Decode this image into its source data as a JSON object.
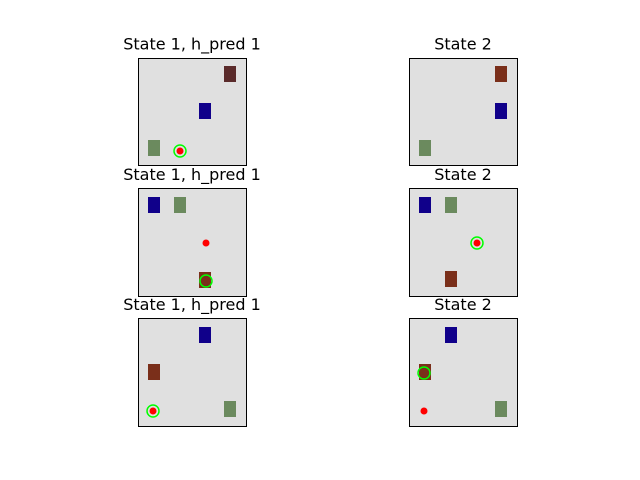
{
  "figure": {
    "panels": [
      {
        "title": "State 1, h_pred 1",
        "blocks": [
          {
            "color": "#5a2a2a",
            "name": "maroon"
          },
          {
            "color": "#10008a",
            "name": "blue"
          },
          {
            "color": "#6b8a5e",
            "name": "green"
          }
        ],
        "markers": [
          {
            "kind": "red-dot",
            "color": "#ff0000"
          },
          {
            "kind": "green-ring",
            "color": "#00ff00"
          }
        ]
      },
      {
        "title": "State 2",
        "blocks": [
          {
            "color": "#7a2f1a",
            "name": "brown"
          },
          {
            "color": "#10008a",
            "name": "blue"
          },
          {
            "color": "#6b8a5e",
            "name": "green"
          }
        ],
        "markers": []
      },
      {
        "title": "State 1, h_pred 1",
        "blocks": [
          {
            "color": "#10008a",
            "name": "blue"
          },
          {
            "color": "#6b8a5e",
            "name": "green"
          },
          {
            "color": "#7a2f1a",
            "name": "brown"
          }
        ],
        "markers": [
          {
            "kind": "red-dot",
            "color": "#ff0000"
          },
          {
            "kind": "green-ring",
            "color": "#00ff00"
          }
        ]
      },
      {
        "title": "State 2",
        "blocks": [
          {
            "color": "#10008a",
            "name": "blue"
          },
          {
            "color": "#6b8a5e",
            "name": "green"
          },
          {
            "color": "#7a2f1a",
            "name": "brown"
          }
        ],
        "markers": [
          {
            "kind": "red-dot",
            "color": "#ff0000"
          },
          {
            "kind": "green-ring",
            "color": "#00ff00"
          }
        ]
      },
      {
        "title": "State 1, h_pred 1",
        "blocks": [
          {
            "color": "#10008a",
            "name": "blue"
          },
          {
            "color": "#7a2f1a",
            "name": "brown"
          },
          {
            "color": "#6b8a5e",
            "name": "green"
          }
        ],
        "markers": [
          {
            "kind": "red-dot",
            "color": "#ff0000"
          },
          {
            "kind": "green-ring",
            "color": "#00ff00"
          }
        ]
      },
      {
        "title": "State 2",
        "blocks": [
          {
            "color": "#10008a",
            "name": "blue"
          },
          {
            "color": "#7a2f1a",
            "name": "brown"
          },
          {
            "color": "#6b8a5e",
            "name": "green"
          }
        ],
        "markers": [
          {
            "kind": "green-ring",
            "color": "#00ff00"
          },
          {
            "kind": "red-dot",
            "color": "#ff0000"
          }
        ]
      }
    ],
    "colors": {
      "background": "#e0e0e0",
      "frame": "#000000"
    }
  }
}
